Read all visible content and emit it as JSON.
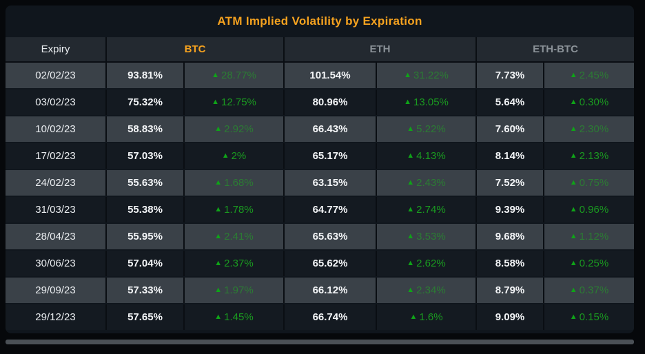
{
  "title": "ATM Implied Volatility by Expiration",
  "columns": {
    "expiry_label": "Expiry",
    "groups": [
      {
        "label": "BTC"
      },
      {
        "label": "ETH"
      },
      {
        "label": "ETH-BTC"
      }
    ]
  },
  "up_icon": "▲",
  "rows": [
    {
      "expiry": "02/02/23",
      "btc": "93.81%",
      "btc_change": "28.77%",
      "eth": "101.54%",
      "eth_change": "31.22%",
      "ethbtc": "7.73%",
      "ethbtc_change": "2.45%"
    },
    {
      "expiry": "03/02/23",
      "btc": "75.32%",
      "btc_change": "12.75%",
      "eth": "80.96%",
      "eth_change": "13.05%",
      "ethbtc": "5.64%",
      "ethbtc_change": "0.30%"
    },
    {
      "expiry": "10/02/23",
      "btc": "58.83%",
      "btc_change": "2.92%",
      "eth": "66.43%",
      "eth_change": "5.22%",
      "ethbtc": "7.60%",
      "ethbtc_change": "2.30%"
    },
    {
      "expiry": "17/02/23",
      "btc": "57.03%",
      "btc_change": "2%",
      "eth": "65.17%",
      "eth_change": "4.13%",
      "ethbtc": "8.14%",
      "ethbtc_change": "2.13%"
    },
    {
      "expiry": "24/02/23",
      "btc": "55.63%",
      "btc_change": "1.68%",
      "eth": "63.15%",
      "eth_change": "2.43%",
      "ethbtc": "7.52%",
      "ethbtc_change": "0.75%"
    },
    {
      "expiry": "31/03/23",
      "btc": "55.38%",
      "btc_change": "1.78%",
      "eth": "64.77%",
      "eth_change": "2.74%",
      "ethbtc": "9.39%",
      "ethbtc_change": "0.96%"
    },
    {
      "expiry": "28/04/23",
      "btc": "55.95%",
      "btc_change": "2.41%",
      "eth": "65.63%",
      "eth_change": "3.53%",
      "ethbtc": "9.68%",
      "ethbtc_change": "1.12%"
    },
    {
      "expiry": "30/06/23",
      "btc": "57.04%",
      "btc_change": "2.37%",
      "eth": "65.62%",
      "eth_change": "2.62%",
      "ethbtc": "8.58%",
      "ethbtc_change": "0.25%"
    },
    {
      "expiry": "29/09/23",
      "btc": "57.33%",
      "btc_change": "1.97%",
      "eth": "66.12%",
      "eth_change": "2.34%",
      "ethbtc": "8.79%",
      "ethbtc_change": "0.37%"
    },
    {
      "expiry": "29/12/23",
      "btc": "57.65%",
      "btc_change": "1.45%",
      "eth": "66.74%",
      "eth_change": "1.6%",
      "ethbtc": "9.09%",
      "ethbtc_change": "0.15%"
    }
  ],
  "colors": {
    "accent_orange": "#f7a31f",
    "green_triangle": "#0fa318",
    "green_text_dark_row": "#1a9b20",
    "green_text_striped_row": "#2b7c33",
    "striped_row_bg": "#3a4148",
    "dark_row_bg": "#141a21",
    "header_bg": "#232930",
    "card_bg": "#10161d",
    "page_bg": "#06080b",
    "scrollbar_thumb": "#4a5056"
  },
  "chart_data": {
    "type": "table",
    "title": "ATM Implied Volatility by Expiration",
    "columns": [
      "Expiry",
      "BTC IV",
      "BTC IV change (up)",
      "ETH IV",
      "ETH IV change (up)",
      "ETH-BTC IV",
      "ETH-BTC IV change (up)"
    ],
    "rows": [
      [
        "02/02/23",
        93.81,
        28.77,
        101.54,
        31.22,
        7.73,
        2.45
      ],
      [
        "03/02/23",
        75.32,
        12.75,
        80.96,
        13.05,
        5.64,
        0.3
      ],
      [
        "10/02/23",
        58.83,
        2.92,
        66.43,
        5.22,
        7.6,
        2.3
      ],
      [
        "17/02/23",
        57.03,
        2.0,
        65.17,
        4.13,
        8.14,
        2.13
      ],
      [
        "24/02/23",
        55.63,
        1.68,
        63.15,
        2.43,
        7.52,
        0.75
      ],
      [
        "31/03/23",
        55.38,
        1.78,
        64.77,
        2.74,
        9.39,
        0.96
      ],
      [
        "28/04/23",
        55.95,
        2.41,
        65.63,
        3.53,
        9.68,
        1.12
      ],
      [
        "30/06/23",
        57.04,
        2.37,
        65.62,
        2.62,
        8.58,
        0.25
      ],
      [
        "29/09/23",
        57.33,
        1.97,
        66.12,
        2.34,
        8.79,
        0.37
      ],
      [
        "29/12/23",
        57.65,
        1.45,
        66.74,
        1.6,
        9.09,
        0.15
      ]
    ],
    "units": "percent",
    "notes": "All change values shown with green up-triangle (increase)."
  }
}
